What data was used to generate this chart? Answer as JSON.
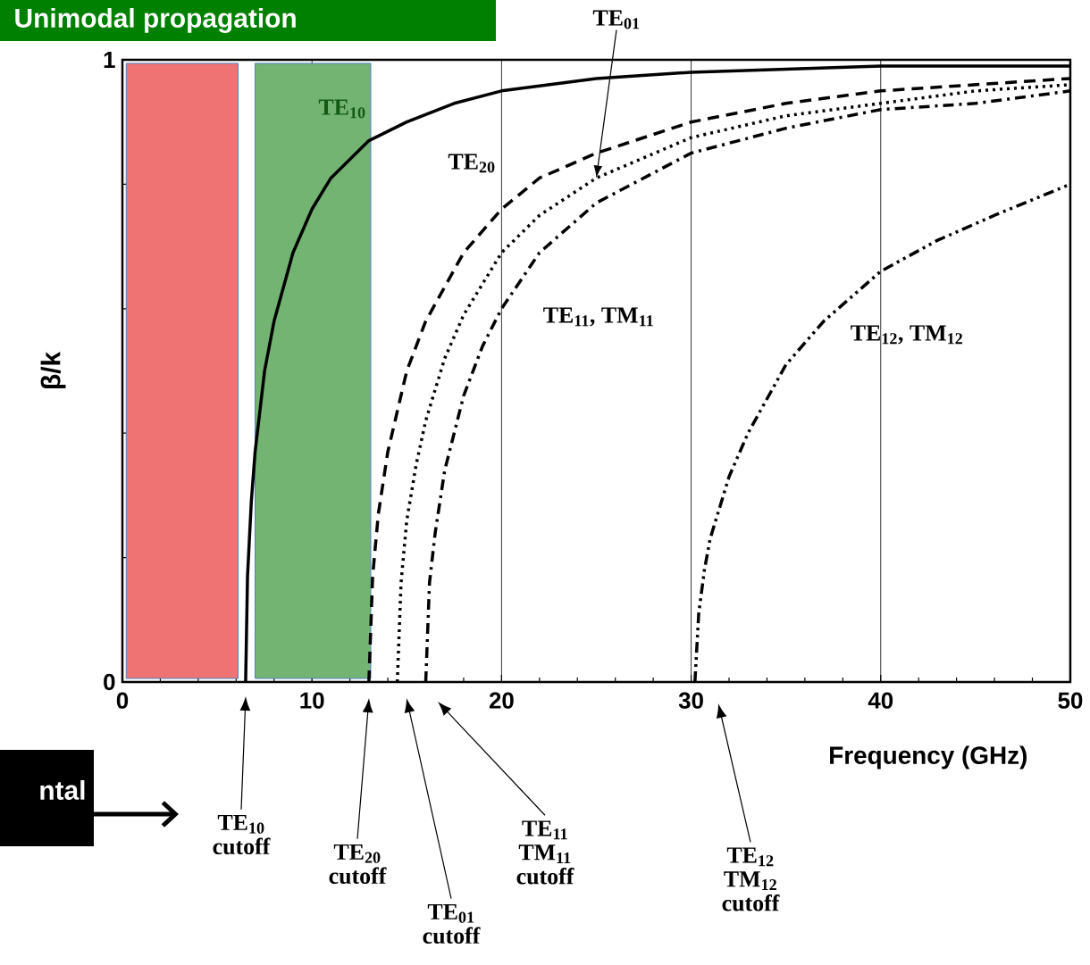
{
  "chart_data": {
    "type": "line",
    "title": "Unimodal propagation",
    "xlabel": "Frequency (GHz)",
    "ylabel": "β/k",
    "xlim": [
      0,
      50
    ],
    "ylim": [
      0,
      1
    ],
    "xticks": [
      0,
      {
        "value": 2,
        "label": null
      },
      {
        "value": 4,
        "label": null
      },
      {
        "value": 6,
        "label": null
      },
      {
        "value": 8,
        "label": null
      },
      10,
      {
        "value": 12,
        "label": null
      },
      {
        "value": 14,
        "label": null
      },
      {
        "value": 16,
        "label": null
      },
      {
        "value": 18,
        "label": null
      },
      20,
      {
        "value": 22,
        "label": null
      },
      {
        "value": 24,
        "label": null
      },
      {
        "value": 26,
        "label": null
      },
      {
        "value": 28,
        "label": null
      },
      30,
      {
        "value": 32,
        "label": null
      },
      {
        "value": 34,
        "label": null
      },
      {
        "value": 36,
        "label": null
      },
      {
        "value": 38,
        "label": null
      },
      40,
      {
        "value": 42,
        "label": null
      },
      {
        "value": 44,
        "label": null
      },
      {
        "value": 46,
        "label": null
      },
      {
        "value": 48,
        "label": null
      },
      50
    ],
    "yticks": [
      0,
      {
        "value": 0.2,
        "label": null
      },
      {
        "value": 0.4,
        "label": null
      },
      {
        "value": 0.6,
        "label": null
      },
      {
        "value": 0.8,
        "label": null
      },
      1
    ],
    "grid": "x",
    "legend": false,
    "bands": [
      {
        "axis": "x",
        "from": 0.2,
        "to": 6.1,
        "color": "#f07373"
      },
      {
        "axis": "x",
        "from": 7.0,
        "to": 13.1,
        "color": "#73b473"
      }
    ],
    "series": [
      {
        "name": "TE$_{10}$",
        "color": "#000000",
        "line_style": "solid",
        "x": [
          6.5,
          6.6,
          6.8,
          7,
          7.5,
          8,
          9,
          10,
          11,
          12,
          13,
          15,
          17.5,
          20,
          25,
          30,
          40,
          50
        ],
        "values": [
          0,
          0.17,
          0.29,
          0.37,
          0.5,
          0.58,
          0.69,
          0.76,
          0.81,
          0.84,
          0.87,
          0.9,
          0.93,
          0.95,
          0.97,
          0.98,
          0.99,
          0.99
        ]
      },
      {
        "name": "TE$_{20}$",
        "color": "#000000",
        "line_style": "dashed",
        "x": [
          13,
          13.2,
          13.5,
          14,
          15,
          16,
          18,
          20,
          22,
          25,
          30,
          35,
          40,
          45,
          50
        ],
        "values": [
          0,
          0.17,
          0.27,
          0.37,
          0.5,
          0.58,
          0.69,
          0.76,
          0.81,
          0.85,
          0.9,
          0.93,
          0.95,
          0.96,
          0.97
        ]
      },
      {
        "name": "TE$_{01}$",
        "color": "#000000",
        "line_style": "dotted",
        "x": [
          14.5,
          14.7,
          15,
          15.5,
          16,
          17,
          18,
          20,
          22,
          25,
          30,
          35,
          40,
          45,
          50
        ],
        "values": [
          0,
          0.16,
          0.26,
          0.35,
          0.42,
          0.52,
          0.59,
          0.69,
          0.75,
          0.81,
          0.875,
          0.91,
          0.93,
          0.95,
          0.96
        ]
      },
      {
        "name": "TE$_{11}$, TM$_{11}$",
        "color": "#000000",
        "line_style": "dashdot",
        "x": [
          16,
          16.2,
          16.5,
          17,
          18,
          19,
          20,
          22,
          25,
          30,
          35,
          40,
          45,
          50
        ],
        "values": [
          0,
          0.16,
          0.24,
          0.34,
          0.46,
          0.54,
          0.6,
          0.69,
          0.77,
          0.85,
          0.89,
          0.92,
          0.93,
          0.95
        ]
      },
      {
        "name": "TE$_{12}$, TM$_{12}$",
        "color": "#000000",
        "line_style": "dashdotdot",
        "x": [
          30.2,
          30.4,
          30.7,
          31,
          32,
          33,
          35,
          37,
          40,
          43,
          46,
          50
        ],
        "values": [
          0,
          0.11,
          0.18,
          0.23,
          0.33,
          0.4,
          0.51,
          0.58,
          0.66,
          0.71,
          0.75,
          0.8
        ]
      }
    ],
    "annotations": [
      "ntal",
      "TE$_{10}$ cutoff",
      "TE$_{20}$ cutoff",
      "TE$_{01}$ cutoff",
      "TE$_{11}$ TM$_{11}$ cutoff",
      "TE$_{12}$ TM$_{12}$ cutoff"
    ]
  }
}
